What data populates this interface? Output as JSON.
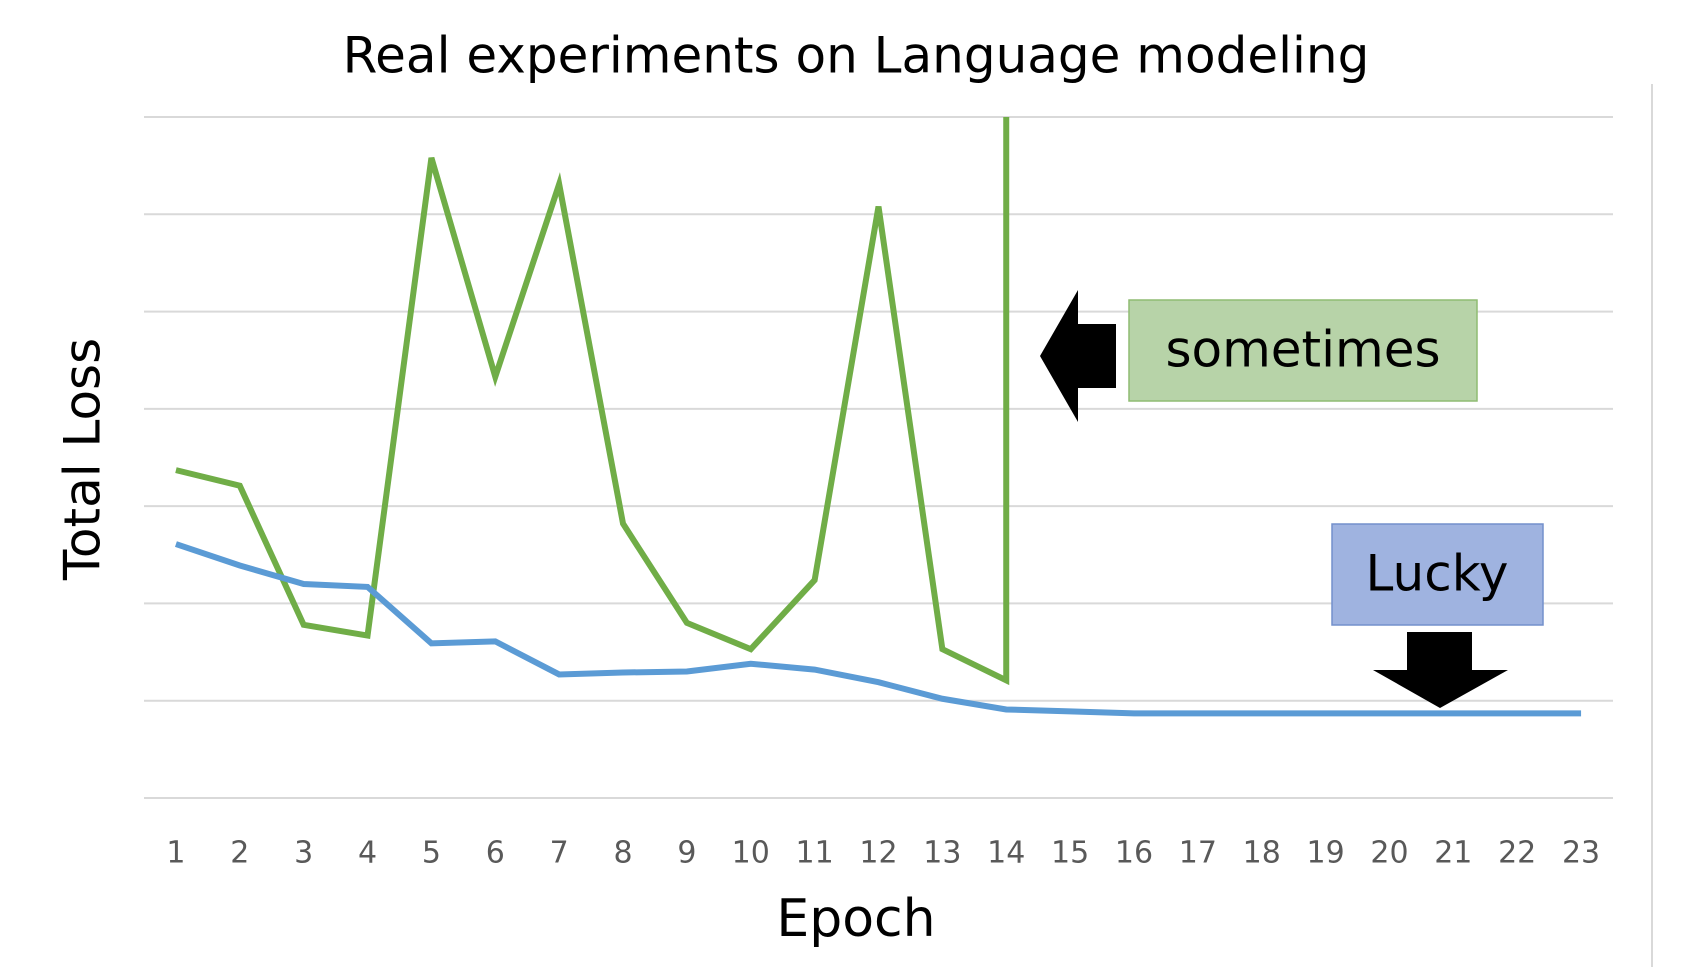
{
  "chart_data": {
    "type": "line",
    "title": "Real experiments on Language modeling",
    "xlabel": "Epoch",
    "ylabel": "Total Loss",
    "xlim": [
      0.5,
      23.5
    ],
    "xticks": [
      1,
      2,
      3,
      4,
      5,
      6,
      7,
      8,
      9,
      10,
      11,
      12,
      13,
      14,
      15,
      16,
      17,
      18,
      19,
      20,
      21,
      22,
      23
    ],
    "ylim": [
      0,
      7
    ],
    "yticks": [
      0,
      1,
      2,
      3,
      4,
      5,
      6,
      7
    ],
    "grid": true,
    "series": [
      {
        "color": "#70ad47",
        "x": [
          1,
          2,
          3,
          4,
          5,
          6,
          7,
          8,
          9,
          10,
          11,
          12,
          13,
          14,
          14
        ],
        "values": [
          3.37,
          3.21,
          1.78,
          1.67,
          6.58,
          4.33,
          6.31,
          2.82,
          1.8,
          1.53,
          2.24,
          6.08,
          1.53,
          1.21,
          7
        ]
      },
      {
        "color": "#5b9bd5",
        "x": [
          1,
          2,
          3,
          4,
          5,
          6,
          7,
          8,
          9,
          10,
          11,
          12,
          13,
          14,
          15,
          16,
          17,
          18,
          19,
          20,
          21,
          22,
          23
        ],
        "values": [
          2.61,
          2.39,
          2.2,
          2.17,
          1.59,
          1.61,
          1.27,
          1.29,
          1.3,
          1.38,
          1.32,
          1.19,
          1.02,
          0.91,
          0.89,
          0.87,
          0.87,
          0.87,
          0.87,
          0.87,
          0.87,
          0.87,
          0.87
        ]
      }
    ],
    "annotations": [
      {
        "text": "sometimes"
      },
      {
        "text": "Lucky"
      }
    ]
  }
}
